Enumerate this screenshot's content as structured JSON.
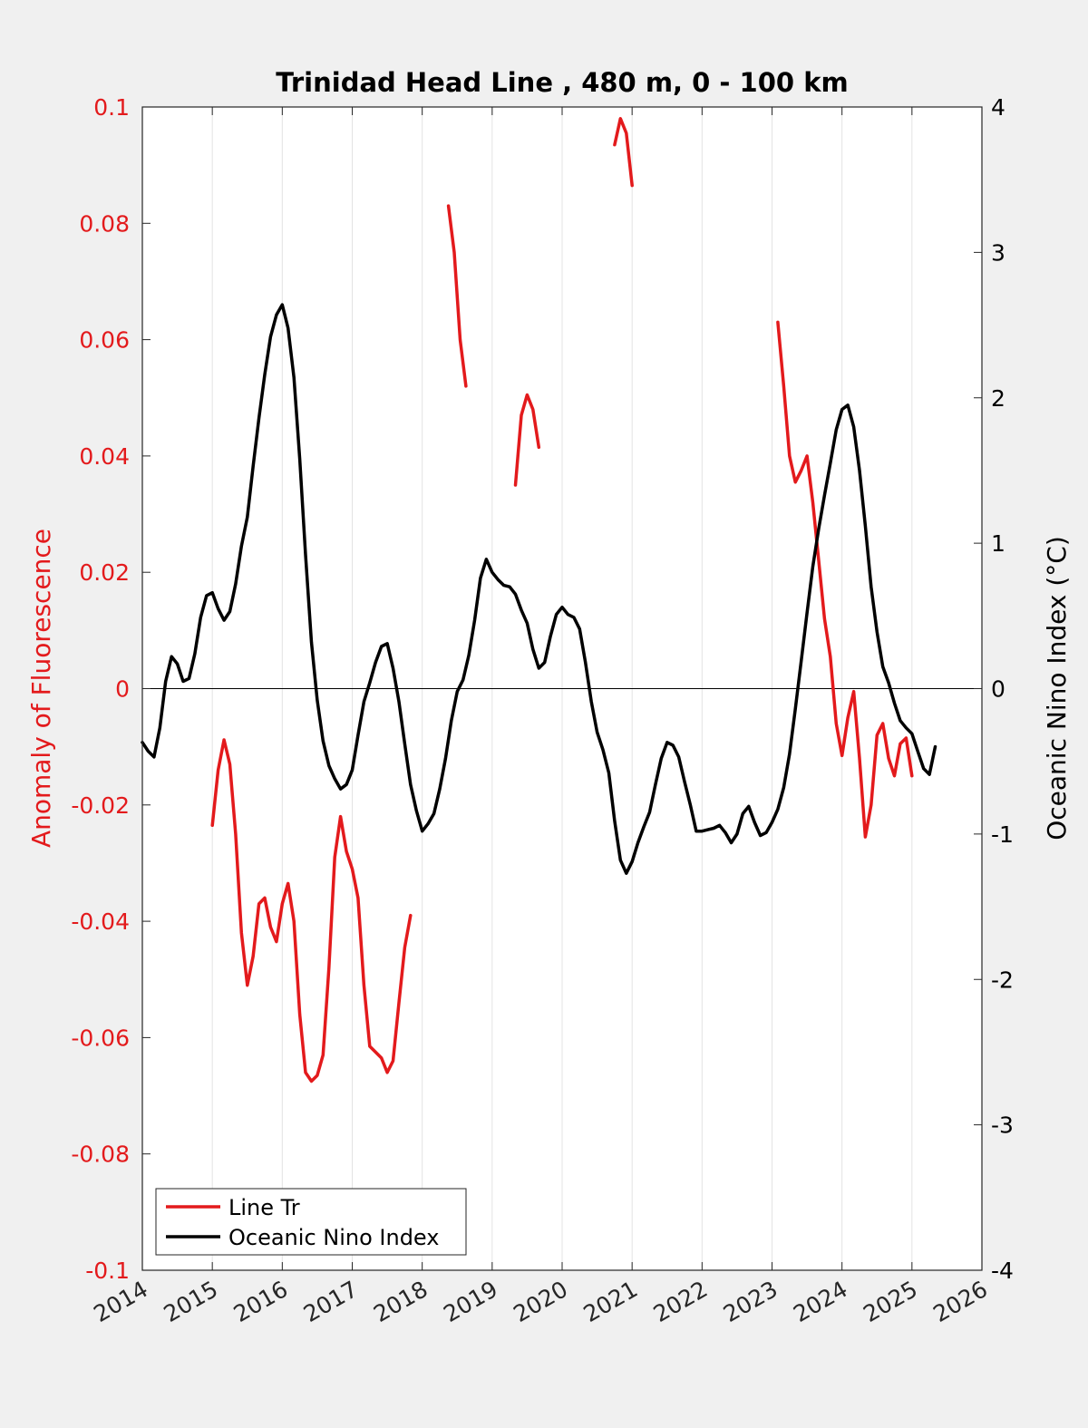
{
  "chart_data": {
    "type": "line",
    "title": "Trinidad Head Line , 480 m, 0 - 100 km",
    "xlim": [
      2014,
      2026
    ],
    "x_ticks": [
      "2014",
      "2015",
      "2016",
      "2017",
      "2018",
      "2019",
      "2020",
      "2021",
      "2022",
      "2023",
      "2024",
      "2025",
      "2026"
    ],
    "left_axis": {
      "label": "Anomaly of Fluorescence",
      "color": "#e31a1c",
      "ylim": [
        -0.1,
        0.1
      ],
      "ticks": [
        "-0.1",
        "-0.08",
        "-0.06",
        "-0.04",
        "-0.02",
        "0",
        "0.02",
        "0.04",
        "0.06",
        "0.08",
        "0.1"
      ]
    },
    "right_axis": {
      "label": "Oceanic Nino Index (°C)",
      "color": "#000000",
      "ylim": [
        -4,
        4
      ],
      "ticks": [
        "-4",
        "-3",
        "-2",
        "-1",
        "0",
        "1",
        "2",
        "3",
        "4"
      ]
    },
    "legend": {
      "placement": "bottom-left",
      "entries": [
        {
          "label": "Line Tr",
          "color": "#e31a1c"
        },
        {
          "label": "Oceanic Nino Index",
          "color": "#000000"
        }
      ]
    },
    "grid": "vertical",
    "series": [
      {
        "name": "Line Tr",
        "axis": "left",
        "color": "#e31a1c",
        "segments": [
          [
            [
              2015.0,
              -0.0235
            ],
            [
              2015.083,
              -0.014
            ],
            [
              2015.167,
              -0.0088
            ],
            [
              2015.25,
              -0.013
            ],
            [
              2015.333,
              -0.025
            ],
            [
              2015.417,
              -0.042
            ],
            [
              2015.5,
              -0.051
            ],
            [
              2015.583,
              -0.046
            ],
            [
              2015.667,
              -0.037
            ],
            [
              2015.75,
              -0.036
            ],
            [
              2015.833,
              -0.041
            ],
            [
              2015.917,
              -0.0435
            ],
            [
              2016.0,
              -0.037
            ],
            [
              2016.083,
              -0.0335
            ],
            [
              2016.167,
              -0.04
            ],
            [
              2016.25,
              -0.056
            ],
            [
              2016.333,
              -0.066
            ],
            [
              2016.417,
              -0.0675
            ],
            [
              2016.5,
              -0.0665
            ],
            [
              2016.583,
              -0.063
            ],
            [
              2016.667,
              -0.048
            ],
            [
              2016.75,
              -0.029
            ],
            [
              2016.833,
              -0.022
            ],
            [
              2016.917,
              -0.028
            ],
            [
              2017.0,
              -0.031
            ],
            [
              2017.083,
              -0.036
            ],
            [
              2017.167,
              -0.051
            ],
            [
              2017.25,
              -0.0615
            ],
            [
              2017.333,
              -0.0625
            ],
            [
              2017.417,
              -0.0635
            ],
            [
              2017.5,
              -0.066
            ],
            [
              2017.583,
              -0.064
            ],
            [
              2017.667,
              -0.054
            ],
            [
              2017.75,
              -0.0445
            ],
            [
              2017.833,
              -0.039
            ]
          ],
          [
            [
              2018.375,
              0.083
            ],
            [
              2018.458,
              0.075
            ],
            [
              2018.542,
              0.06
            ],
            [
              2018.625,
              0.052
            ]
          ],
          [
            [
              2019.333,
              0.035
            ],
            [
              2019.417,
              0.047
            ],
            [
              2019.5,
              0.0505
            ],
            [
              2019.583,
              0.048
            ],
            [
              2019.667,
              0.0415
            ]
          ],
          [
            [
              2020.75,
              0.0935
            ],
            [
              2020.833,
              0.098
            ],
            [
              2020.917,
              0.0955
            ],
            [
              2021.0,
              0.0865
            ]
          ],
          [
            [
              2023.083,
              0.063
            ],
            [
              2023.167,
              0.052
            ],
            [
              2023.25,
              0.04
            ],
            [
              2023.333,
              0.0355
            ],
            [
              2023.417,
              0.0375
            ],
            [
              2023.5,
              0.04
            ],
            [
              2023.583,
              0.032
            ],
            [
              2023.667,
              0.022
            ],
            [
              2023.75,
              0.012
            ],
            [
              2023.833,
              0.0055
            ],
            [
              2023.917,
              -0.006
            ],
            [
              2024.0,
              -0.0115
            ],
            [
              2024.083,
              -0.005
            ],
            [
              2024.167,
              -0.0005
            ],
            [
              2024.25,
              -0.012
            ],
            [
              2024.333,
              -0.0255
            ],
            [
              2024.417,
              -0.02
            ],
            [
              2024.5,
              -0.008
            ],
            [
              2024.583,
              -0.006
            ],
            [
              2024.667,
              -0.012
            ],
            [
              2024.75,
              -0.015
            ],
            [
              2024.833,
              -0.0095
            ],
            [
              2024.917,
              -0.0085
            ],
            [
              2025.0,
              -0.015
            ]
          ]
        ]
      },
      {
        "name": "Oceanic Nino Index",
        "axis": "right",
        "color": "#000000",
        "segments": [
          [
            [
              2014.0,
              -0.37
            ],
            [
              2014.083,
              -0.43
            ],
            [
              2014.167,
              -0.47
            ],
            [
              2014.25,
              -0.27
            ],
            [
              2014.333,
              0.05
            ],
            [
              2014.417,
              0.22
            ],
            [
              2014.5,
              0.17
            ],
            [
              2014.583,
              0.05
            ],
            [
              2014.667,
              0.07
            ],
            [
              2014.75,
              0.24
            ],
            [
              2014.833,
              0.49
            ],
            [
              2014.917,
              0.64
            ],
            [
              2015.0,
              0.66
            ],
            [
              2015.083,
              0.55
            ],
            [
              2015.167,
              0.47
            ],
            [
              2015.25,
              0.53
            ],
            [
              2015.333,
              0.72
            ],
            [
              2015.417,
              0.98
            ],
            [
              2015.5,
              1.18
            ],
            [
              2015.583,
              1.53
            ],
            [
              2015.667,
              1.86
            ],
            [
              2015.75,
              2.16
            ],
            [
              2015.833,
              2.42
            ],
            [
              2015.917,
              2.57
            ],
            [
              2016.0,
              2.64
            ],
            [
              2016.083,
              2.48
            ],
            [
              2016.167,
              2.14
            ],
            [
              2016.25,
              1.58
            ],
            [
              2016.333,
              0.92
            ],
            [
              2016.417,
              0.32
            ],
            [
              2016.5,
              -0.08
            ],
            [
              2016.583,
              -0.36
            ],
            [
              2016.667,
              -0.53
            ],
            [
              2016.75,
              -0.62
            ],
            [
              2016.833,
              -0.69
            ],
            [
              2016.917,
              -0.66
            ],
            [
              2017.0,
              -0.56
            ],
            [
              2017.083,
              -0.32
            ],
            [
              2017.167,
              -0.09
            ],
            [
              2017.25,
              0.04
            ],
            [
              2017.333,
              0.18
            ],
            [
              2017.417,
              0.29
            ],
            [
              2017.5,
              0.31
            ],
            [
              2017.583,
              0.14
            ],
            [
              2017.667,
              -0.09
            ],
            [
              2017.75,
              -0.38
            ],
            [
              2017.833,
              -0.66
            ],
            [
              2017.917,
              -0.84
            ],
            [
              2018.0,
              -0.98
            ],
            [
              2018.083,
              -0.93
            ],
            [
              2018.167,
              -0.86
            ],
            [
              2018.25,
              -0.69
            ],
            [
              2018.333,
              -0.48
            ],
            [
              2018.417,
              -0.22
            ],
            [
              2018.5,
              -0.02
            ],
            [
              2018.583,
              0.06
            ],
            [
              2018.667,
              0.23
            ],
            [
              2018.75,
              0.47
            ],
            [
              2018.833,
              0.76
            ],
            [
              2018.917,
              0.89
            ],
            [
              2019.0,
              0.8
            ],
            [
              2019.083,
              0.75
            ],
            [
              2019.167,
              0.71
            ],
            [
              2019.25,
              0.7
            ],
            [
              2019.333,
              0.65
            ],
            [
              2019.417,
              0.54
            ],
            [
              2019.5,
              0.45
            ],
            [
              2019.583,
              0.27
            ],
            [
              2019.667,
              0.14
            ],
            [
              2019.75,
              0.18
            ],
            [
              2019.833,
              0.36
            ],
            [
              2019.917,
              0.51
            ],
            [
              2020.0,
              0.56
            ],
            [
              2020.083,
              0.51
            ],
            [
              2020.167,
              0.49
            ],
            [
              2020.25,
              0.41
            ],
            [
              2020.333,
              0.18
            ],
            [
              2020.417,
              -0.09
            ],
            [
              2020.5,
              -0.3
            ],
            [
              2020.583,
              -0.42
            ],
            [
              2020.667,
              -0.58
            ],
            [
              2020.75,
              -0.91
            ],
            [
              2020.833,
              -1.18
            ],
            [
              2020.917,
              -1.27
            ],
            [
              2021.0,
              -1.19
            ],
            [
              2021.083,
              -1.06
            ],
            [
              2021.167,
              -0.95
            ],
            [
              2021.25,
              -0.85
            ],
            [
              2021.333,
              -0.66
            ],
            [
              2021.417,
              -0.48
            ],
            [
              2021.5,
              -0.37
            ],
            [
              2021.583,
              -0.39
            ],
            [
              2021.667,
              -0.47
            ],
            [
              2021.75,
              -0.64
            ],
            [
              2021.833,
              -0.8
            ],
            [
              2021.917,
              -0.98
            ],
            [
              2022.0,
              -0.98
            ],
            [
              2022.083,
              -0.97
            ],
            [
              2022.167,
              -0.96
            ],
            [
              2022.25,
              -0.94
            ],
            [
              2022.333,
              -0.99
            ],
            [
              2022.417,
              -1.06
            ],
            [
              2022.5,
              -1.0
            ],
            [
              2022.583,
              -0.86
            ],
            [
              2022.667,
              -0.81
            ],
            [
              2022.75,
              -0.92
            ],
            [
              2022.833,
              -1.01
            ],
            [
              2022.917,
              -0.99
            ],
            [
              2023.0,
              -0.92
            ],
            [
              2023.083,
              -0.83
            ],
            [
              2023.167,
              -0.68
            ],
            [
              2023.25,
              -0.45
            ],
            [
              2023.333,
              -0.14
            ],
            [
              2023.417,
              0.19
            ],
            [
              2023.5,
              0.52
            ],
            [
              2023.583,
              0.84
            ],
            [
              2023.667,
              1.1
            ],
            [
              2023.75,
              1.33
            ],
            [
              2023.833,
              1.55
            ],
            [
              2023.917,
              1.78
            ],
            [
              2024.0,
              1.92
            ],
            [
              2024.083,
              1.95
            ],
            [
              2024.167,
              1.8
            ],
            [
              2024.25,
              1.5
            ],
            [
              2024.333,
              1.12
            ],
            [
              2024.417,
              0.7
            ],
            [
              2024.5,
              0.39
            ],
            [
              2024.583,
              0.15
            ],
            [
              2024.667,
              0.04
            ],
            [
              2024.75,
              -0.1
            ],
            [
              2024.833,
              -0.22
            ],
            [
              2024.917,
              -0.27
            ],
            [
              2025.0,
              -0.31
            ],
            [
              2025.083,
              -0.43
            ],
            [
              2025.167,
              -0.55
            ],
            [
              2025.25,
              -0.59
            ],
            [
              2025.333,
              -0.4
            ]
          ]
        ]
      }
    ]
  }
}
